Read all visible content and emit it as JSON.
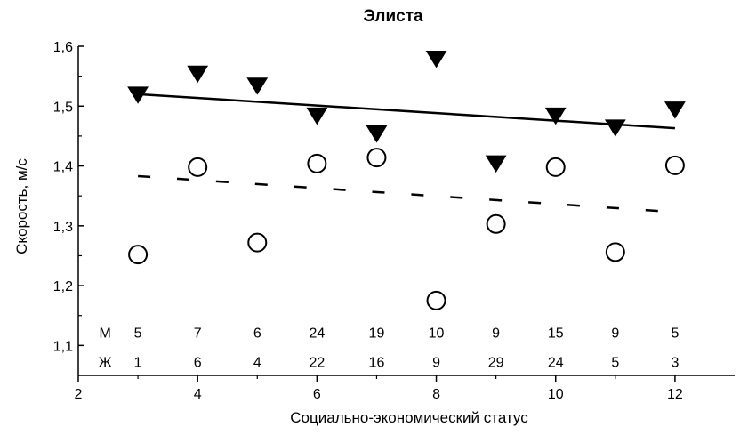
{
  "chart_data": {
    "type": "scatter",
    "title": "Элиста",
    "xlabel": "Социально-экономический статус",
    "ylabel": "Скорость, м/с",
    "xlim": [
      2,
      13
    ],
    "ylim": [
      1.05,
      1.6
    ],
    "xticks": [
      2,
      4,
      6,
      8,
      10,
      12
    ],
    "xtick_labels": [
      "2",
      "4",
      "6",
      "8",
      "10",
      "12"
    ],
    "yticks": [
      1.1,
      1.2,
      1.3,
      1.4,
      1.5,
      1.6
    ],
    "ytick_labels": [
      "1,1",
      "1,2",
      "1,3",
      "1,4",
      "1,5",
      "1,6"
    ],
    "grid": false,
    "series": [
      {
        "marker": "filled-down-triangle",
        "color": "#000000",
        "x": [
          3,
          4,
          5,
          6,
          7,
          8,
          9,
          10,
          11,
          12
        ],
        "y": [
          1.52,
          1.555,
          1.535,
          1.485,
          1.455,
          1.58,
          1.405,
          1.485,
          1.465,
          1.495
        ]
      },
      {
        "marker": "open-circle",
        "color": "#000000",
        "x": [
          3,
          4,
          5,
          6,
          7,
          8,
          9,
          10,
          11,
          12
        ],
        "y": [
          1.252,
          1.398,
          1.272,
          1.404,
          1.414,
          1.175,
          1.303,
          1.398,
          1.256,
          1.401
        ]
      }
    ],
    "trendlines": [
      {
        "style": "solid",
        "x": [
          3,
          12
        ],
        "y": [
          1.52,
          1.463
        ]
      },
      {
        "style": "dashed",
        "x": [
          3,
          12
        ],
        "y": [
          1.383,
          1.323
        ]
      }
    ],
    "count_rows": [
      {
        "label": "М",
        "y": 1.122,
        "values": [
          "5",
          "7",
          "6",
          "24",
          "19",
          "10",
          "9",
          "15",
          "9",
          "5"
        ]
      },
      {
        "label": "Ж",
        "y": 1.073,
        "values": [
          "1",
          "6",
          "4",
          "22",
          "16",
          "9",
          "29",
          "24",
          "5",
          "3"
        ]
      }
    ],
    "count_x": [
      3,
      4,
      5,
      6,
      7,
      8,
      9,
      10,
      11,
      12
    ],
    "count_label_x": 2.45
  }
}
